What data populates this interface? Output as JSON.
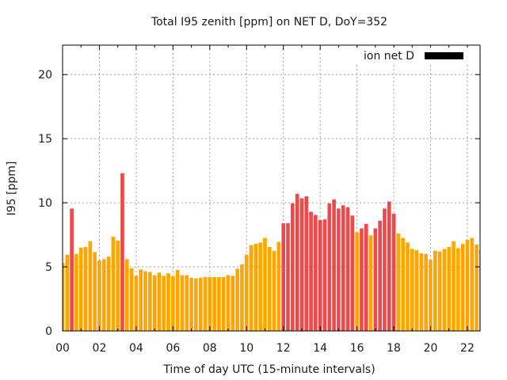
{
  "chart_data": {
    "type": "bar",
    "title": "Total I95 zenith [ppm] on NET D, DoY=352",
    "xlabel": "Time of day UTC (15-minute intervals)",
    "ylabel": "I95 [ppm]",
    "xlim": [
      0,
      22.69
    ],
    "ylim": [
      0,
      22.3
    ],
    "grid": true,
    "interval_hours": 0.25,
    "x_ticks": [
      {
        "value": 0,
        "label": "00"
      },
      {
        "value": 2,
        "label": "02"
      },
      {
        "value": 4,
        "label": "04"
      },
      {
        "value": 6,
        "label": "06"
      },
      {
        "value": 8,
        "label": "08"
      },
      {
        "value": 10,
        "label": "10"
      },
      {
        "value": 12,
        "label": "12"
      },
      {
        "value": 14,
        "label": "14"
      },
      {
        "value": 16,
        "label": "16"
      },
      {
        "value": 18,
        "label": "18"
      },
      {
        "value": 20,
        "label": "20"
      },
      {
        "value": 22,
        "label": "22"
      }
    ],
    "y_ticks": [
      {
        "value": 0,
        "label": "0"
      },
      {
        "value": 5,
        "label": "5"
      },
      {
        "value": 10,
        "label": "10"
      },
      {
        "value": 15,
        "label": "15"
      },
      {
        "value": 20,
        "label": "20"
      }
    ],
    "legend": {
      "label": "ion net D",
      "position": "top-right",
      "color": "#000000"
    },
    "colors": {
      "normal": "#FFA500",
      "elevated": "#F04848",
      "axis": "#000000",
      "grid": "#a0a0a0"
    },
    "series": [
      {
        "name": "ion net D",
        "values": [
          5.3,
          5.95,
          9.55,
          6.0,
          6.5,
          6.55,
          7.0,
          6.15,
          5.5,
          5.6,
          5.8,
          7.35,
          7.05,
          12.3,
          5.6,
          4.9,
          4.3,
          4.8,
          4.65,
          4.6,
          4.35,
          4.55,
          4.3,
          4.5,
          4.25,
          4.75,
          4.35,
          4.35,
          4.15,
          4.1,
          4.15,
          4.2,
          4.2,
          4.2,
          4.2,
          4.2,
          4.35,
          4.3,
          4.85,
          5.2,
          5.95,
          6.7,
          6.8,
          6.9,
          7.25,
          6.55,
          6.25,
          6.95,
          8.4,
          8.4,
          9.95,
          10.7,
          10.35,
          10.5,
          9.3,
          9.05,
          8.65,
          8.7,
          9.95,
          10.25,
          9.55,
          9.8,
          9.65,
          9.0,
          7.7,
          8.0,
          8.35,
          7.45,
          8.0,
          8.6,
          9.55,
          10.1,
          9.15,
          7.6,
          7.25,
          6.9,
          6.4,
          6.3,
          6.05,
          6.0,
          5.55,
          6.25,
          6.2,
          6.4,
          6.55,
          7.0,
          6.45,
          6.8,
          7.1,
          7.25,
          6.75,
          6.3
        ],
        "elevated_indices": [
          2,
          13,
          48,
          49,
          50,
          51,
          52,
          53,
          54,
          55,
          56,
          57,
          58,
          59,
          60,
          61,
          62,
          63,
          65,
          66,
          68,
          69,
          70,
          71,
          72
        ]
      }
    ]
  }
}
